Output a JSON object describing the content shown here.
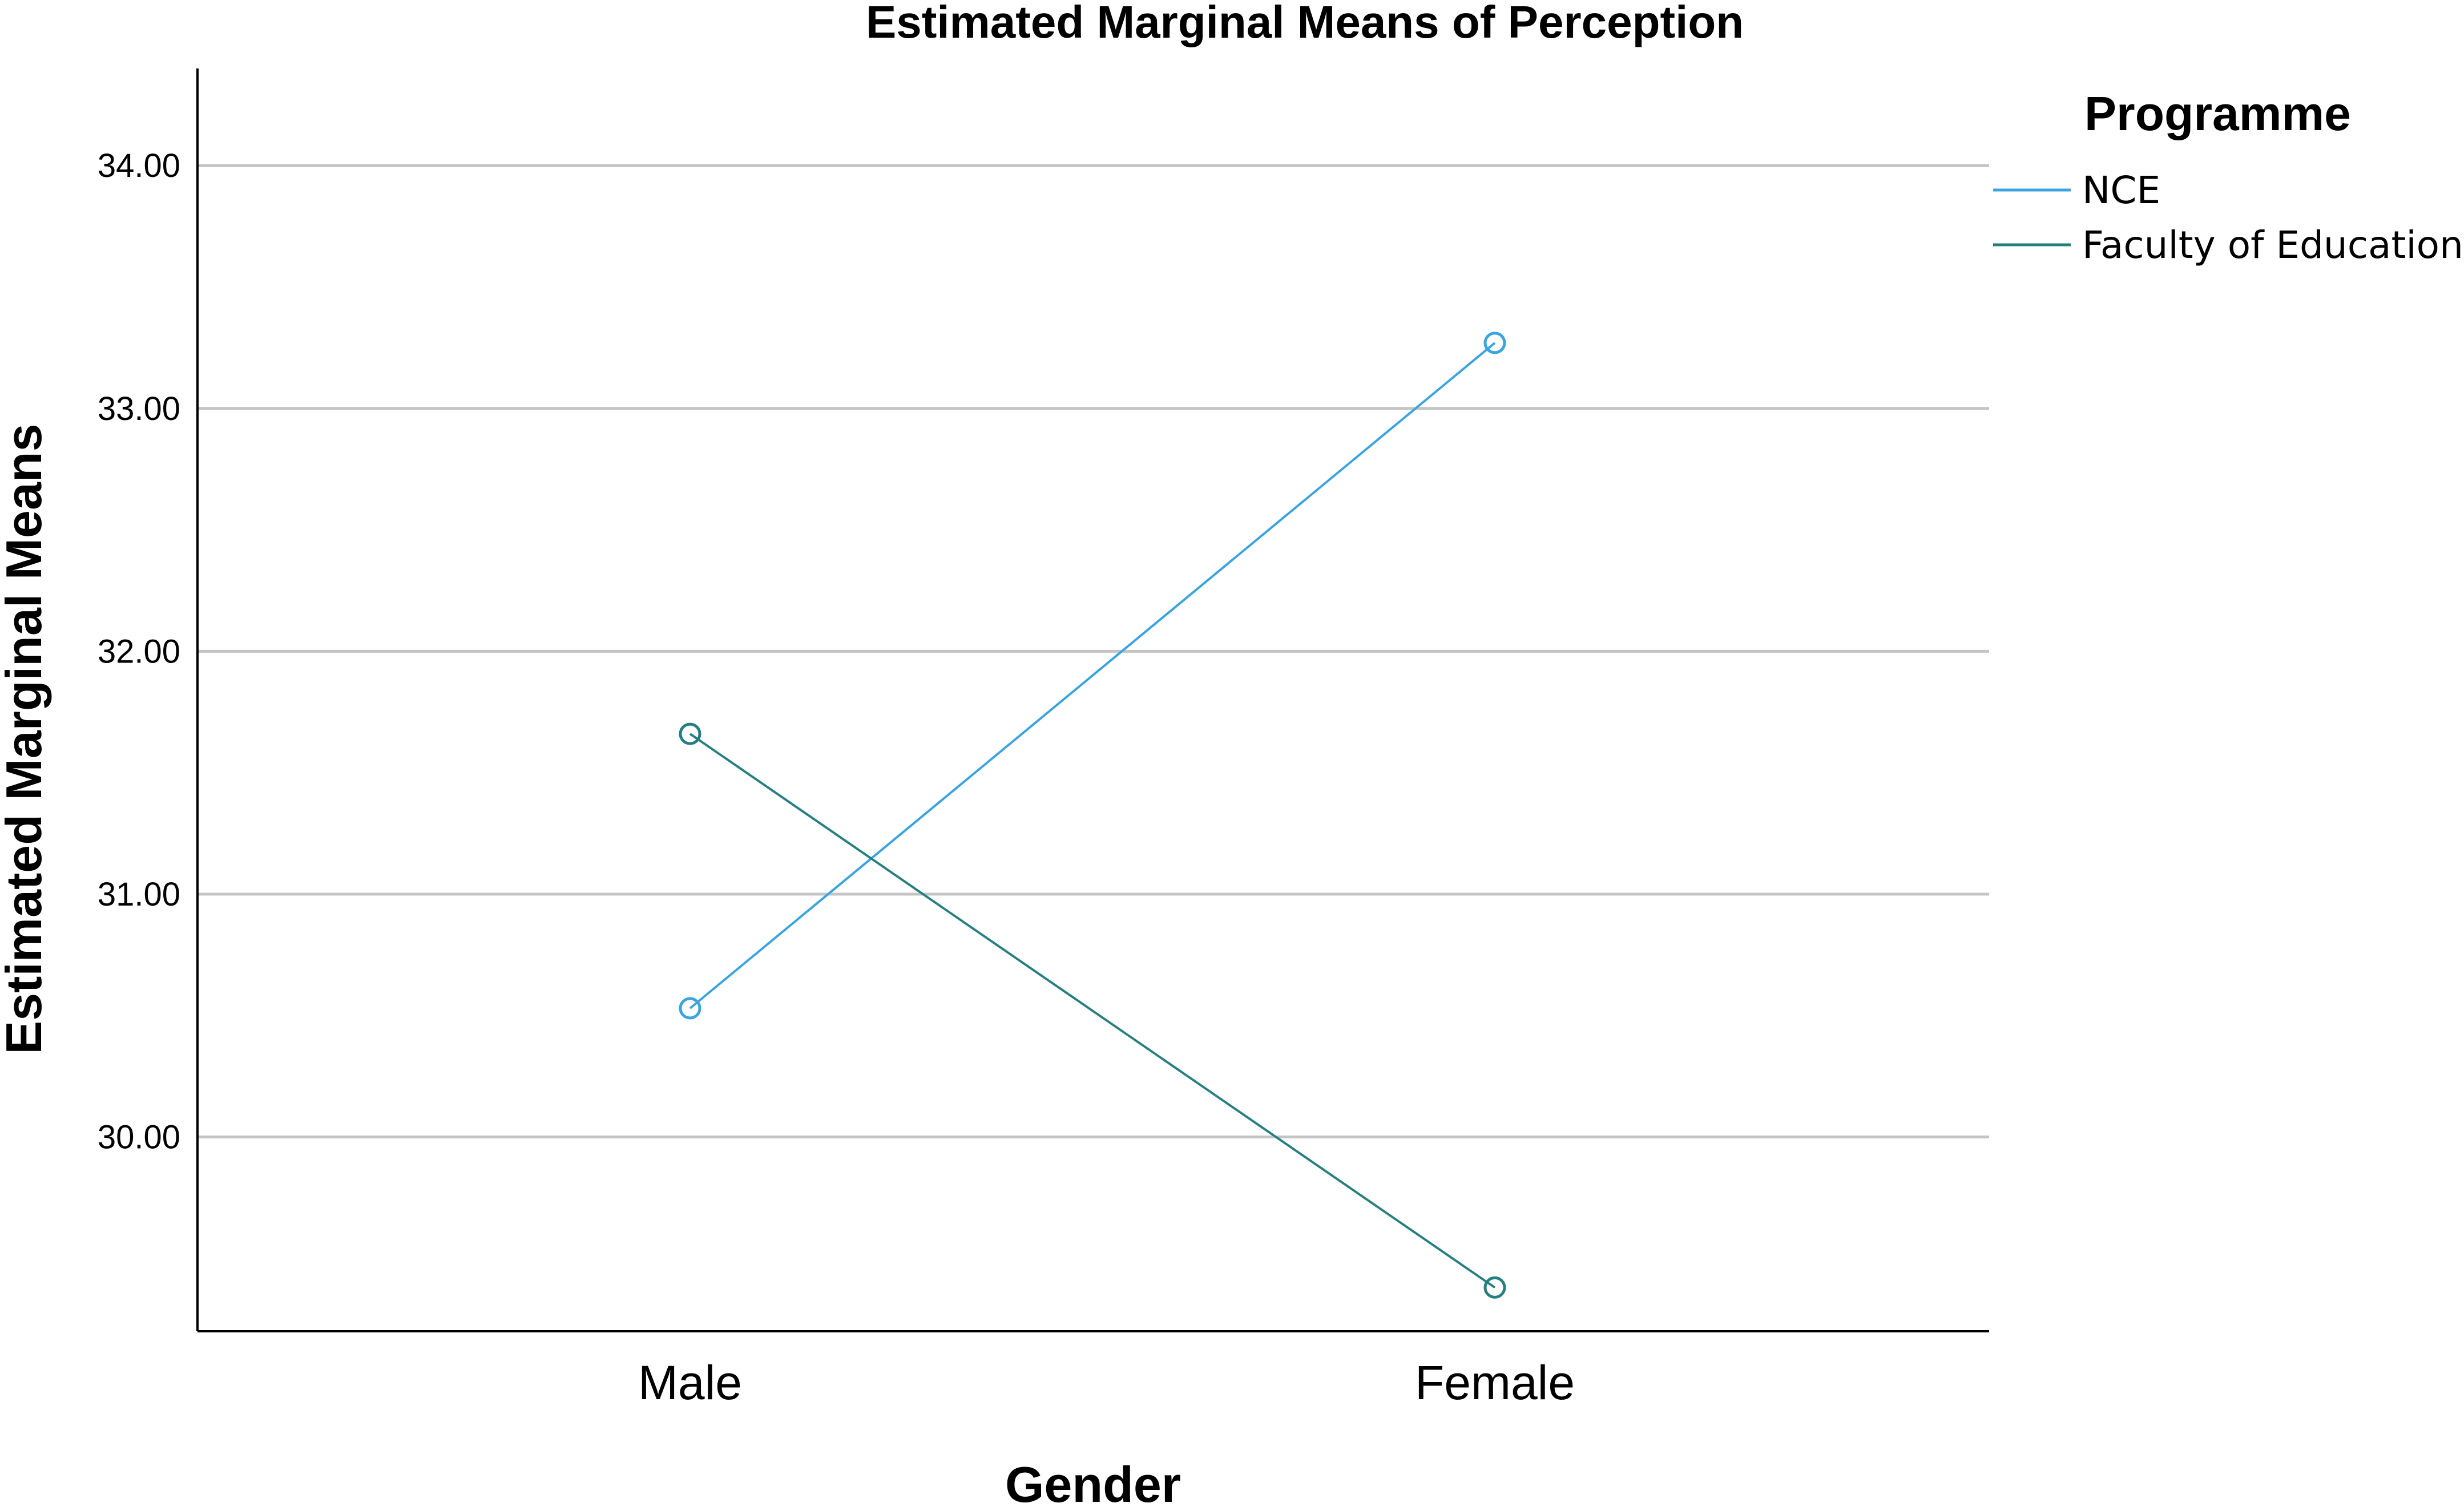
{
  "chart_data": {
    "type": "line",
    "title": "Estimated Marginal Means of Perception",
    "xlabel": "Gender",
    "ylabel": "Estimated Marginal Means",
    "categories": [
      "Male",
      "Female"
    ],
    "ylim": [
      29.2,
      34.4
    ],
    "yticks": [
      30.0,
      31.0,
      32.0,
      33.0,
      34.0
    ],
    "ytick_labels": [
      "30.00",
      "31.00",
      "32.00",
      "33.00",
      "34.00"
    ],
    "grid": true,
    "legend": {
      "title": "Programme",
      "placement": "top-right"
    },
    "series": [
      {
        "name": "NCE",
        "values": [
          30.53,
          33.27
        ],
        "color": "#3aa3e0"
      },
      {
        "name": "Faculty of Education",
        "values": [
          31.66,
          29.38
        ],
        "color": "#267f7f"
      }
    ]
  }
}
